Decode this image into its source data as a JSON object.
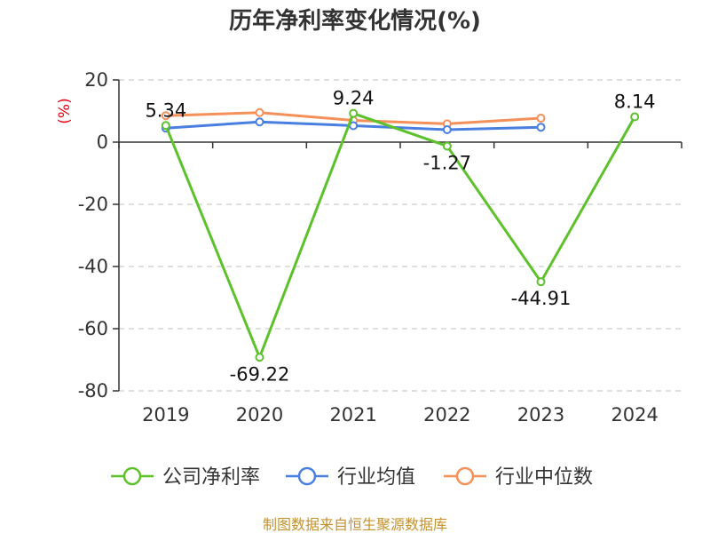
{
  "chart_data": {
    "type": "line",
    "title": "历年净利率变化情况(%)",
    "ylabel": "(%)",
    "xlabel": "",
    "categories": [
      "2019",
      "2020",
      "2021",
      "2022",
      "2023",
      "2024"
    ],
    "ylim": [
      -80,
      20
    ],
    "yticks": [
      20,
      0,
      -20,
      -40,
      -60,
      -80
    ],
    "grid": true,
    "legend_position": "bottom",
    "series": [
      {
        "name": "公司净利率",
        "color": "#5cc12a",
        "values": [
          5.34,
          -69.22,
          9.24,
          -1.27,
          -44.91,
          8.14
        ],
        "labels": [
          "5.34",
          "-69.22",
          "9.24",
          "-1.27",
          "-44.91",
          "8.14"
        ]
      },
      {
        "name": "行业均值",
        "color": "#4a7fe0",
        "values": [
          4.5,
          6.5,
          5.3,
          4.0,
          4.8,
          null
        ]
      },
      {
        "name": "行业中位数",
        "color": "#f5905a",
        "values": [
          8.5,
          9.5,
          7.0,
          5.9,
          7.7,
          null
        ]
      }
    ]
  },
  "footer": "制图数据来自恒生聚源数据库"
}
